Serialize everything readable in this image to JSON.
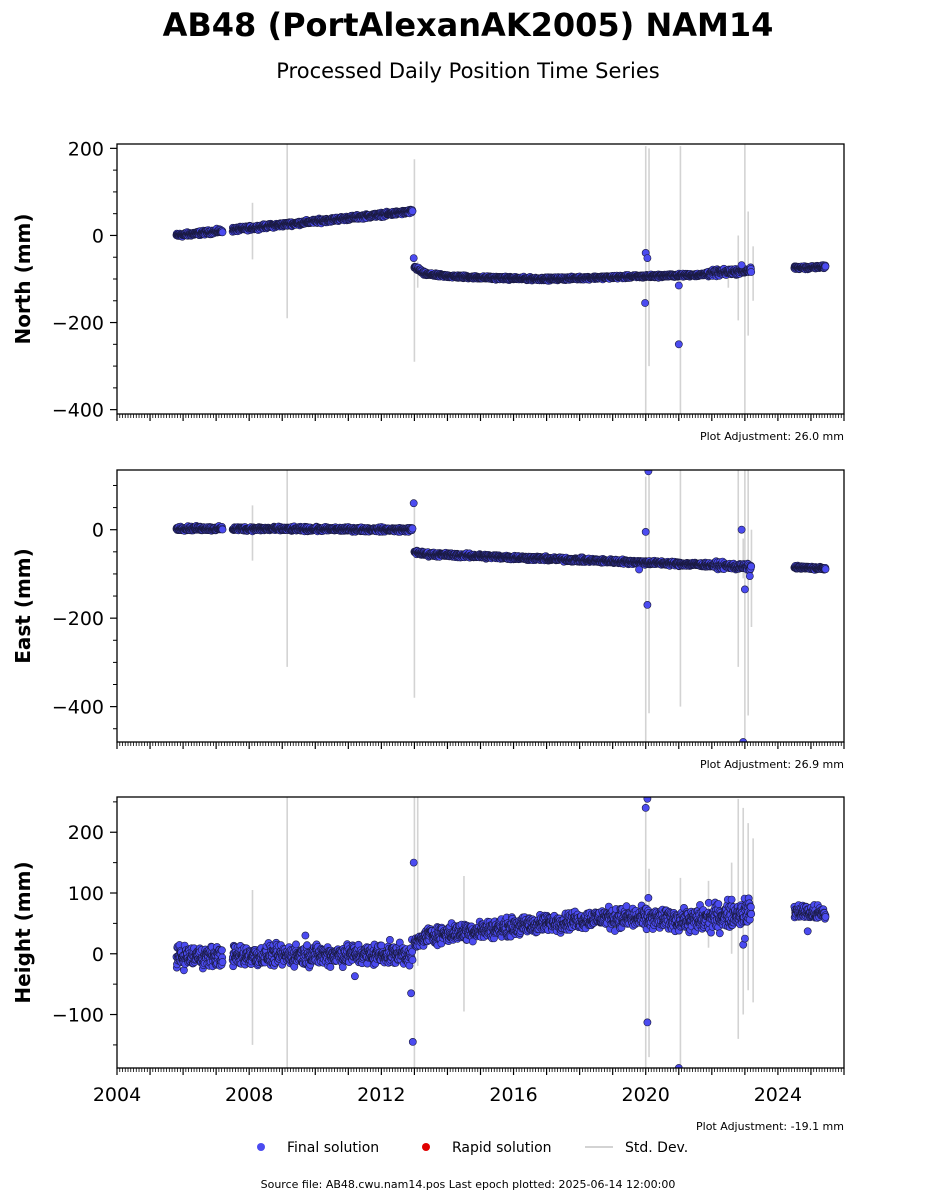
{
  "figure": {
    "title": "AB48 (PortAlexanAK2005) NAM14",
    "subtitle": "Processed Daily Position Time Series",
    "source_note": "Source file: AB48.cwu.nam14.pos  Last epoch plotted: 2025-06-14 12:00:00"
  },
  "legend": {
    "placement": "bottom-center",
    "items": [
      {
        "label": "Final solution",
        "color": "#4b4bf0",
        "kind": "marker"
      },
      {
        "label": "Rapid solution",
        "color": "#e00000",
        "kind": "marker"
      },
      {
        "label": "Std. Dev.",
        "color": "#d3d3d3",
        "kind": "line"
      }
    ]
  },
  "colors": {
    "final": "#4b4bf0",
    "rapid": "#e00000",
    "stddev": "#d3d3d3",
    "edge": "#1a1a40"
  },
  "chart_data": [
    {
      "type": "scatter",
      "ylabel": "North (mm)",
      "adjustment": "Plot Adjustment: 26.0 mm",
      "xlim": [
        2004.0,
        2026.0
      ],
      "ylim": [
        -410,
        210
      ],
      "yticks": [
        200,
        0,
        -200,
        -400
      ],
      "ytick_labels": [
        "200",
        "0",
        "−200",
        "−400"
      ],
      "segments": [
        {
          "x0": 2005.8,
          "x1": 2012.95,
          "y0": 0,
          "y1": 55,
          "noise": 4,
          "gaps": [
            [
              2007.2,
              2007.5
            ]
          ]
        },
        {
          "x0": 2013.0,
          "x1": 2013.3,
          "y0": -72,
          "y1": -88,
          "noise": 4
        },
        {
          "x0": 2013.3,
          "x1": 2017.0,
          "y0": -88,
          "y1": -100,
          "noise": 3,
          "curve": "log"
        },
        {
          "x0": 2017.0,
          "x1": 2021.8,
          "y0": -100,
          "y1": -90,
          "noise": 3
        },
        {
          "x0": 2021.8,
          "x1": 2023.2,
          "y0": -88,
          "y1": -80,
          "noise": 6
        },
        {
          "x0": 2024.5,
          "x1": 2025.45,
          "y0": -75,
          "y1": -72,
          "noise": 3
        }
      ],
      "outliers": [
        [
          2012.98,
          -52
        ],
        [
          2020.0,
          -40
        ],
        [
          2020.05,
          -52
        ],
        [
          2019.98,
          -155
        ],
        [
          2021.0,
          -115
        ],
        [
          2021.0,
          -250
        ],
        [
          2022.9,
          -68
        ]
      ],
      "stddev_bars": [
        [
          2008.1,
          -55,
          75
        ],
        [
          2009.15,
          -190,
          210
        ],
        [
          2013.0,
          -290,
          175
        ],
        [
          2020.0,
          -415,
          205
        ],
        [
          2020.1,
          -300,
          200
        ],
        [
          2021.05,
          -415,
          205
        ],
        [
          2022.8,
          -195,
          0
        ],
        [
          2023.0,
          -415,
          210
        ],
        [
          2023.1,
          -230,
          55
        ],
        [
          2023.25,
          -150,
          -25
        ],
        [
          2013.1,
          -120,
          -60
        ],
        [
          2022.5,
          -120,
          -70
        ]
      ]
    },
    {
      "type": "scatter",
      "ylabel": "East (mm)",
      "adjustment": "Plot Adjustment: 26.9 mm",
      "xlim": [
        2004.0,
        2026.0
      ],
      "ylim": [
        -480,
        135
      ],
      "yticks": [
        0,
        -200,
        -400
      ],
      "ytick_labels": [
        "0",
        "−200",
        "−400"
      ],
      "segments": [
        {
          "x0": 2005.8,
          "x1": 2012.95,
          "y0": 3,
          "y1": 0,
          "noise": 4,
          "gaps": [
            [
              2007.2,
              2007.5
            ]
          ]
        },
        {
          "x0": 2013.0,
          "x1": 2013.3,
          "y0": -50,
          "y1": -55,
          "noise": 4
        },
        {
          "x0": 2013.3,
          "x1": 2022.0,
          "y0": -55,
          "y1": -80,
          "noise": 4
        },
        {
          "x0": 2022.0,
          "x1": 2023.2,
          "y0": -80,
          "y1": -85,
          "noise": 6
        },
        {
          "x0": 2024.5,
          "x1": 2025.45,
          "y0": -85,
          "y1": -88,
          "noise": 3
        }
      ],
      "outliers": [
        [
          2012.98,
          60
        ],
        [
          2020.0,
          -5
        ],
        [
          2020.05,
          -170
        ],
        [
          2020.08,
          132
        ],
        [
          2022.9,
          0
        ],
        [
          2023.0,
          -135
        ],
        [
          2023.15,
          -105
        ],
        [
          2022.95,
          -480
        ],
        [
          2019.8,
          -90
        ]
      ],
      "stddev_bars": [
        [
          2008.1,
          -70,
          55
        ],
        [
          2009.15,
          -310,
          135
        ],
        [
          2013.0,
          -380,
          60
        ],
        [
          2020.0,
          -480,
          120
        ],
        [
          2020.1,
          -415,
          135
        ],
        [
          2021.05,
          -400,
          135
        ],
        [
          2022.8,
          -310,
          135
        ],
        [
          2023.0,
          -480,
          135
        ],
        [
          2023.1,
          -420,
          135
        ],
        [
          2023.2,
          -220,
          0
        ],
        [
          2022.95,
          -110,
          -20
        ]
      ]
    },
    {
      "type": "scatter",
      "ylabel": "Height (mm)",
      "adjustment": "Plot Adjustment: -19.1 mm",
      "xlim": [
        2004.0,
        2026.0
      ],
      "ylim": [
        -188,
        258
      ],
      "yticks": [
        200,
        100,
        0,
        -100
      ],
      "ytick_labels": [
        "200",
        "100",
        "0",
        "−100"
      ],
      "xticks": [
        2004,
        2008,
        2012,
        2016,
        2020,
        2024
      ],
      "xtick_labels": [
        "2004",
        "2008",
        "2012",
        "2016",
        "2020",
        "2024"
      ],
      "segments": [
        {
          "x0": 2005.8,
          "x1": 2012.95,
          "y0": -5,
          "y1": 0,
          "noise": 14,
          "gaps": [
            [
              2007.2,
              2007.5
            ]
          ]
        },
        {
          "x0": 2013.0,
          "x1": 2013.4,
          "y0": 15,
          "y1": 30,
          "noise": 10
        },
        {
          "x0": 2013.4,
          "x1": 2018.8,
          "y0": 30,
          "y1": 60,
          "noise": 12
        },
        {
          "x0": 2018.8,
          "x1": 2021.5,
          "y0": 60,
          "y1": 55,
          "noise": 14
        },
        {
          "x0": 2021.5,
          "x1": 2023.2,
          "y0": 55,
          "y1": 70,
          "noise": 18
        },
        {
          "x0": 2024.5,
          "x1": 2025.45,
          "y0": 70,
          "y1": 65,
          "noise": 10
        }
      ],
      "outliers": [
        [
          2012.98,
          150
        ],
        [
          2012.9,
          -65
        ],
        [
          2012.95,
          -145
        ],
        [
          2020.0,
          240
        ],
        [
          2020.05,
          255
        ],
        [
          2020.08,
          92
        ],
        [
          2020.05,
          -113
        ],
        [
          2021.0,
          -188
        ],
        [
          2022.95,
          15
        ],
        [
          2023.0,
          25
        ],
        [
          2011.2,
          -37
        ],
        [
          2009.7,
          30
        ],
        [
          2024.9,
          37
        ]
      ],
      "stddev_bars": [
        [
          2008.1,
          -150,
          105
        ],
        [
          2009.15,
          -188,
          258
        ],
        [
          2013.0,
          -188,
          258
        ],
        [
          2013.1,
          -20,
          258
        ],
        [
          2014.5,
          -95,
          128
        ],
        [
          2020.0,
          -188,
          258
        ],
        [
          2020.1,
          -170,
          140
        ],
        [
          2021.05,
          -188,
          125
        ],
        [
          2022.6,
          0,
          150
        ],
        [
          2022.8,
          -140,
          255
        ],
        [
          2022.95,
          -100,
          240
        ],
        [
          2023.1,
          -60,
          215
        ],
        [
          2023.25,
          -80,
          190
        ],
        [
          2021.9,
          10,
          120
        ]
      ]
    }
  ]
}
